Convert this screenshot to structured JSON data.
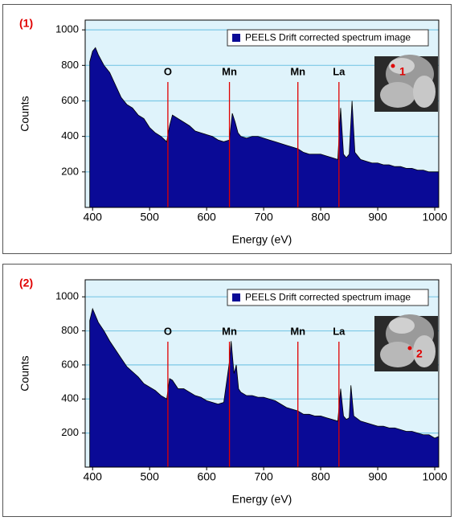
{
  "chart_data": [
    {
      "type": "area",
      "panel_label": "(1)",
      "xlabel": "Energy (eV)",
      "ylabel": "Counts",
      "inset_label": "1",
      "x": [
        395,
        400,
        405,
        410,
        420,
        430,
        440,
        450,
        460,
        470,
        480,
        490,
        500,
        510,
        520,
        530,
        535,
        540,
        550,
        560,
        570,
        580,
        590,
        600,
        610,
        620,
        630,
        640,
        645,
        650,
        655,
        660,
        670,
        680,
        690,
        700,
        710,
        720,
        730,
        740,
        750,
        760,
        770,
        780,
        790,
        800,
        810,
        820,
        830,
        835,
        840,
        845,
        850,
        855,
        860,
        870,
        880,
        890,
        900,
        910,
        920,
        930,
        940,
        950,
        960,
        970,
        980,
        990,
        1000,
        1007
      ],
      "series": [
        {
          "name": "PEELS Drift corrected spectrum image",
          "color": "#0a0a96",
          "values": [
            820,
            880,
            900,
            860,
            800,
            760,
            690,
            620,
            580,
            560,
            520,
            500,
            450,
            420,
            400,
            370,
            460,
            520,
            500,
            480,
            460,
            430,
            420,
            410,
            400,
            380,
            370,
            380,
            530,
            480,
            420,
            400,
            390,
            400,
            400,
            390,
            380,
            370,
            360,
            350,
            340,
            330,
            310,
            300,
            300,
            300,
            290,
            280,
            270,
            560,
            300,
            280,
            300,
            600,
            310,
            270,
            260,
            250,
            250,
            240,
            240,
            230,
            230,
            220,
            220,
            210,
            210,
            200,
            200,
            200
          ]
        }
      ],
      "xlim": [
        387,
        1007
      ],
      "ylim": [
        0,
        1055
      ],
      "xticks": [
        400,
        500,
        600,
        700,
        800,
        900,
        1000
      ],
      "yticks": [
        200,
        400,
        600,
        800,
        1000
      ],
      "grid": true,
      "annotations": [
        {
          "label": "O",
          "x": 532
        },
        {
          "label": "Mn",
          "x": 640
        },
        {
          "label": "Mn",
          "x": 760
        },
        {
          "label": "La",
          "x": 832
        }
      ]
    },
    {
      "type": "area",
      "panel_label": "(2)",
      "xlabel": "Energy (eV)",
      "ylabel": "Counts",
      "inset_label": "2",
      "x": [
        395,
        400,
        410,
        420,
        430,
        440,
        450,
        460,
        470,
        480,
        490,
        500,
        510,
        520,
        530,
        535,
        540,
        550,
        560,
        570,
        580,
        590,
        600,
        610,
        620,
        630,
        640,
        643,
        648,
        652,
        656,
        660,
        670,
        680,
        690,
        700,
        710,
        720,
        730,
        740,
        750,
        760,
        770,
        780,
        790,
        800,
        810,
        820,
        830,
        835,
        840,
        845,
        850,
        853,
        858,
        870,
        880,
        890,
        900,
        910,
        920,
        930,
        940,
        950,
        960,
        970,
        980,
        990,
        1000,
        1007
      ],
      "series": [
        {
          "name": "PEELS Drift corrected spectrum image",
          "color": "#0a0a96",
          "values": [
            860,
            930,
            850,
            800,
            740,
            690,
            640,
            590,
            560,
            530,
            490,
            470,
            450,
            420,
            400,
            520,
            510,
            460,
            460,
            440,
            420,
            410,
            390,
            380,
            370,
            380,
            620,
            740,
            550,
            600,
            460,
            440,
            420,
            420,
            410,
            410,
            400,
            390,
            370,
            350,
            340,
            330,
            310,
            310,
            300,
            300,
            290,
            280,
            270,
            460,
            300,
            280,
            290,
            480,
            300,
            270,
            260,
            250,
            240,
            240,
            230,
            230,
            220,
            210,
            210,
            200,
            190,
            190,
            170,
            180
          ]
        }
      ],
      "xlim": [
        387,
        1007
      ],
      "ylim": [
        0,
        1100
      ],
      "xticks": [
        400,
        500,
        600,
        700,
        800,
        900,
        1000
      ],
      "yticks": [
        200,
        400,
        600,
        800,
        1000
      ],
      "grid": true,
      "annotations": [
        {
          "label": "O",
          "x": 532
        },
        {
          "label": "Mn",
          "x": 640
        },
        {
          "label": "Mn",
          "x": 760
        },
        {
          "label": "La",
          "x": 832
        }
      ]
    }
  ]
}
